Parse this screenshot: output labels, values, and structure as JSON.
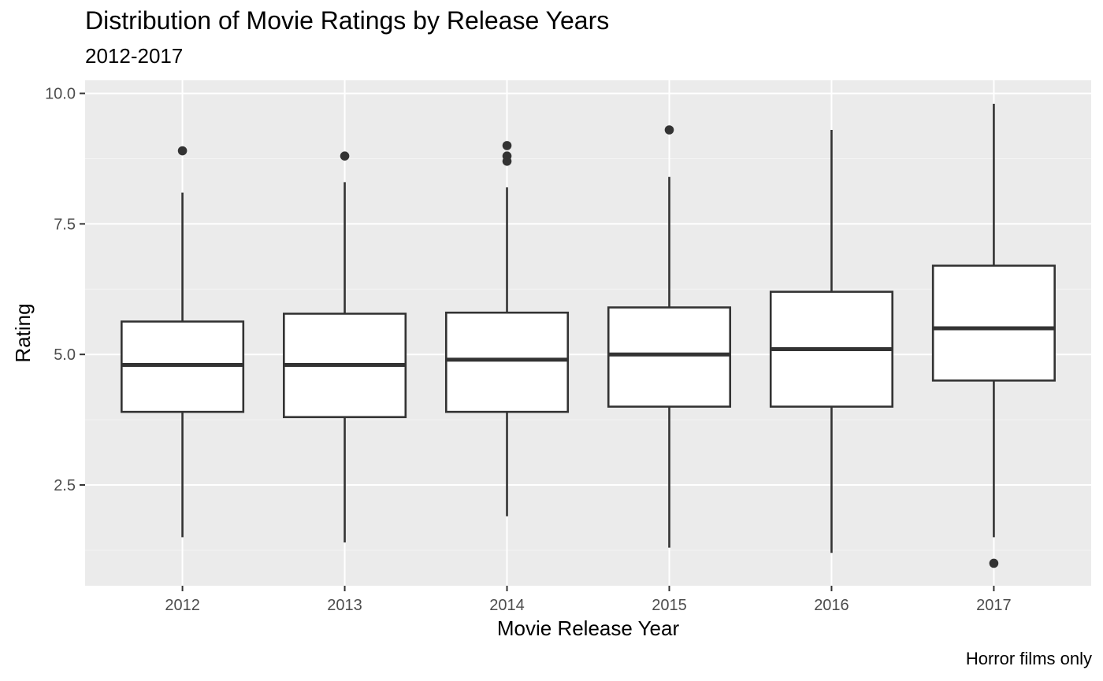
{
  "chart_data": {
    "type": "box",
    "title": "Distribution of Movie Ratings by Release Years",
    "subtitle": "2012-2017",
    "xlabel": "Movie Release Year",
    "ylabel": "Rating",
    "caption": "Horror films only",
    "categories": [
      "2012",
      "2013",
      "2014",
      "2015",
      "2016",
      "2017"
    ],
    "boxes": [
      {
        "category": "2012",
        "lower_whisker": 1.5,
        "q1": 3.9,
        "median": 4.8,
        "q3": 5.63,
        "upper_whisker": 8.1,
        "outliers": [
          8.9
        ]
      },
      {
        "category": "2013",
        "lower_whisker": 1.4,
        "q1": 3.8,
        "median": 4.8,
        "q3": 5.78,
        "upper_whisker": 8.3,
        "outliers": [
          8.8
        ]
      },
      {
        "category": "2014",
        "lower_whisker": 1.9,
        "q1": 3.9,
        "median": 4.9,
        "q3": 5.8,
        "upper_whisker": 8.2,
        "outliers": [
          9.0,
          8.8,
          8.7
        ]
      },
      {
        "category": "2015",
        "lower_whisker": 1.3,
        "q1": 4.0,
        "median": 5.0,
        "q3": 5.9,
        "upper_whisker": 8.4,
        "outliers": [
          9.3
        ]
      },
      {
        "category": "2016",
        "lower_whisker": 1.2,
        "q1": 4.0,
        "median": 5.1,
        "q3": 6.2,
        "upper_whisker": 9.3,
        "outliers": []
      },
      {
        "category": "2017",
        "lower_whisker": 1.5,
        "q1": 4.5,
        "median": 5.5,
        "q3": 6.7,
        "upper_whisker": 9.8,
        "outliers": [
          1.0
        ]
      }
    ],
    "yticks": [
      2.5,
      5.0,
      7.5,
      10.0
    ],
    "ytick_labels": [
      "2.5",
      "5.0",
      "7.5",
      "10.0"
    ],
    "ylim": [
      0.57,
      10.25
    ],
    "grid": true,
    "legend": "none",
    "colors": {
      "panel_background": "#ebebeb",
      "grid_major": "#ffffff",
      "grid_minor": "#f4f4f4",
      "box_fill": "#ffffff",
      "box_stroke": "#333333",
      "outlier": "#333333",
      "axis_text": "#4d4d4d",
      "tick": "#333333"
    }
  }
}
